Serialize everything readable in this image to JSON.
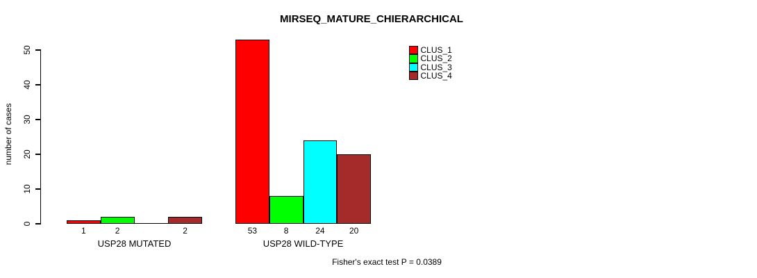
{
  "title": "MIRSEQ_MATURE_CHIERARCHICAL",
  "footer": {
    "text": "Fisher's exact test P = 0.0389"
  },
  "chart_data": {
    "type": "bar",
    "title": "MIRSEQ_MATURE_CHIERARCHICAL",
    "xlabel": "",
    "ylabel": "number of cases",
    "ylim": [
      0,
      53
    ],
    "yticks": [
      "0",
      "10",
      "20",
      "30",
      "40",
      "50"
    ],
    "ytick_values": [
      0,
      10,
      20,
      30,
      40,
      50
    ],
    "grid": false,
    "legend_position": "top-right",
    "categories": [
      "USP28 MUTATED",
      "USP28 WILD-TYPE"
    ],
    "series": [
      {
        "name": "CLUS_1",
        "color": "#FF0000",
        "values": [
          1,
          53
        ]
      },
      {
        "name": "CLUS_2",
        "color": "#00FF00",
        "values": [
          2,
          8
        ]
      },
      {
        "name": "CLUS_3",
        "color": "#00FFFF",
        "values": [
          0,
          24
        ]
      },
      {
        "name": "CLUS_4",
        "color": "#A52A2A",
        "values": [
          2,
          20
        ]
      }
    ],
    "groups": [
      {
        "label": "USP28 MUTATED",
        "values": [
          1,
          2,
          0,
          2
        ],
        "bar_labels": [
          "1",
          "2",
          "",
          "2"
        ]
      },
      {
        "label": "USP28 WILD-TYPE",
        "values": [
          53,
          8,
          24,
          20
        ],
        "bar_labels": [
          "53",
          "8",
          "24",
          "20"
        ]
      }
    ],
    "annotation": "Fisher's exact test P = 0.0389"
  }
}
